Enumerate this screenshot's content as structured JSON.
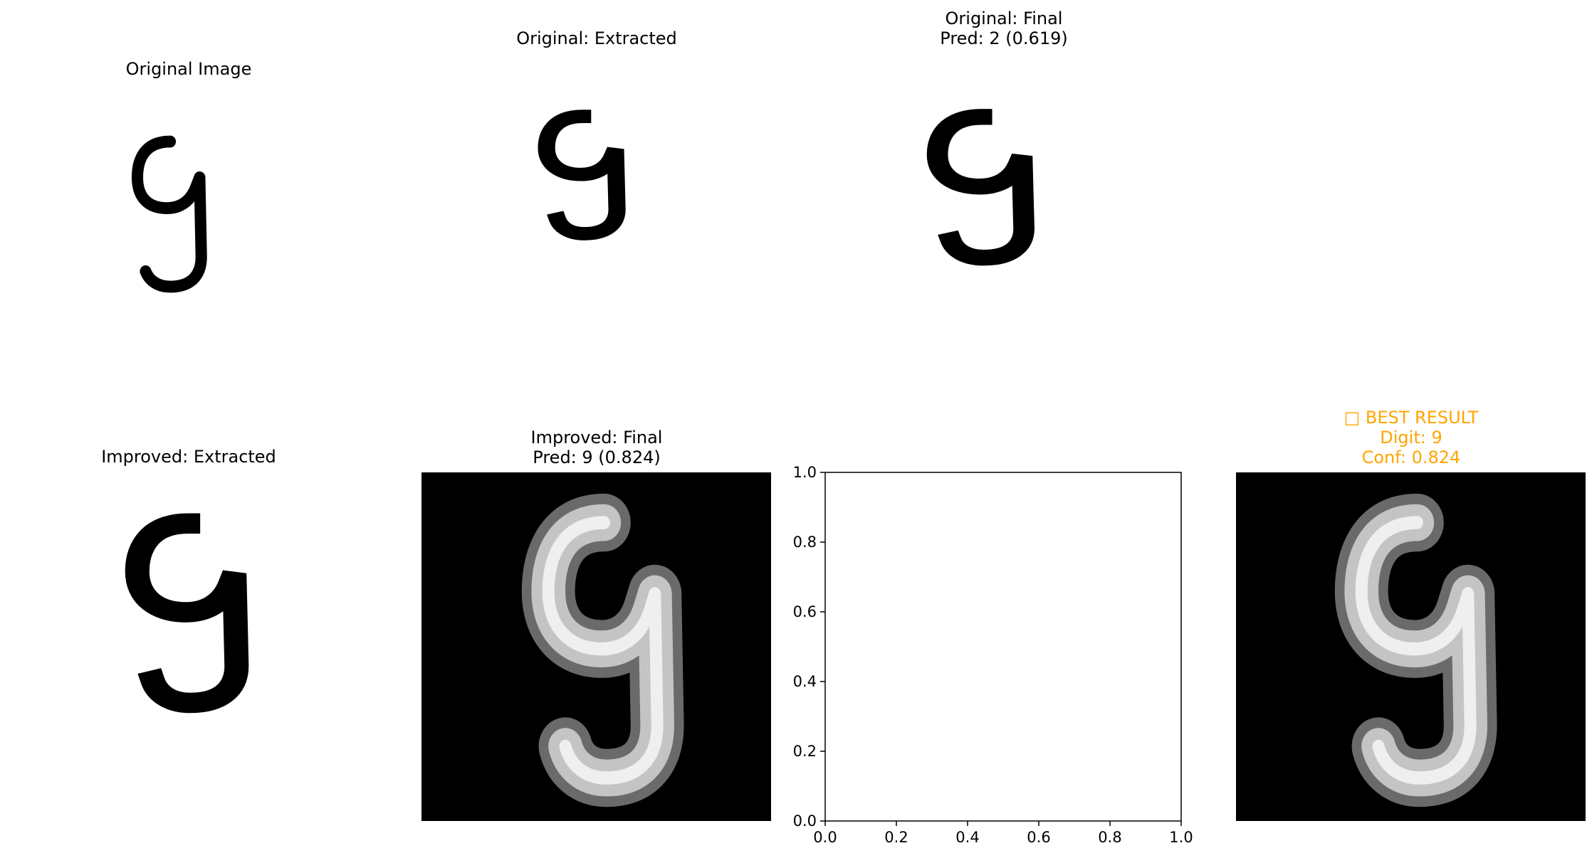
{
  "figure": {
    "panels": [
      {
        "id": "original-image",
        "title_lines": [
          "Original Image"
        ],
        "image": "digit-nine-black-on-white-thin"
      },
      {
        "id": "original-extracted",
        "title_lines": [
          "Original: Extracted"
        ],
        "image": "digit-nine-black-on-white-pixelated"
      },
      {
        "id": "original-final",
        "title_lines": [
          "Original: Final",
          "Pred: 2 (0.619)"
        ],
        "image": "digit-nine-black-on-white-grey-edges"
      },
      {
        "id": "improved-extracted",
        "title_lines": [
          "Improved: Extracted"
        ],
        "image": "digit-nine-black-on-white-pixelated"
      },
      {
        "id": "improved-final",
        "title_lines": [
          "Improved: Final",
          "Pred: 9 (0.824)"
        ],
        "image": "digit-nine-white-on-black"
      },
      {
        "id": "empty-axes",
        "title_lines": [],
        "image": null
      },
      {
        "id": "best-result",
        "title_lines": [
          "□ BEST RESULT",
          "Digit: 9",
          "Conf: 0.824"
        ],
        "title_color": "#FFA500",
        "image": "digit-nine-white-on-black"
      }
    ]
  },
  "chart_data": {
    "type": "scatter",
    "title": "",
    "xlabel": "",
    "ylabel": "",
    "xlim": [
      0.0,
      1.0
    ],
    "ylim": [
      0.0,
      1.0
    ],
    "x_ticks": [
      "0.0",
      "0.2",
      "0.4",
      "0.6",
      "0.8",
      "1.0"
    ],
    "y_ticks": [
      "0.0",
      "0.2",
      "0.4",
      "0.6",
      "0.8",
      "1.0"
    ],
    "series": [],
    "grid": false
  }
}
